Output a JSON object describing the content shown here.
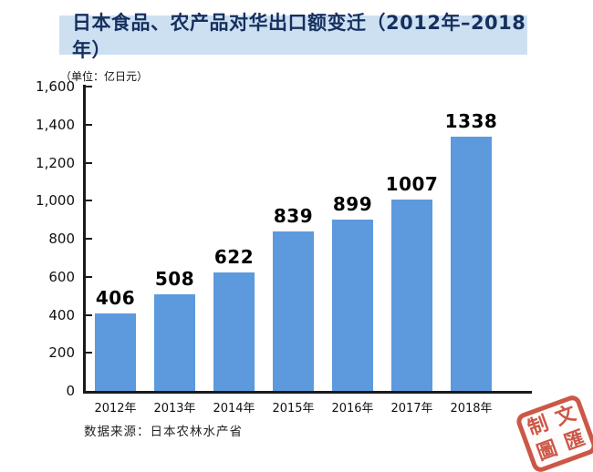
{
  "title": "日本食品、农产品对华出口额变迁（2012年–2018年）",
  "unit_label": "（单位：亿日元）",
  "source": "数据来源：日本农林水产省",
  "stamp": {
    "chars": [
      "制",
      "文",
      "圖",
      "匯"
    ],
    "color": "#c53a28"
  },
  "colors": {
    "banner_bg": "#cde0f2",
    "title_text": "#16305e",
    "bar": "#5d99dd",
    "axis": "#1a1a1a",
    "stamp_red": "#c53a28"
  },
  "chart_data": {
    "type": "bar",
    "title": "日本食品、农产品对华出口额变迁（2012年–2018年）",
    "categories": [
      "2012年",
      "2013年",
      "2014年",
      "2015年",
      "2016年",
      "2017年",
      "2018年"
    ],
    "values": [
      406,
      508,
      622,
      839,
      899,
      1007,
      1338
    ],
    "value_labels_shown": true,
    "unit": "亿日元",
    "xlabel": "",
    "ylabel": "（单位：亿日元）",
    "ylim": [
      0,
      1600
    ],
    "ytick_values": [
      0,
      200,
      400,
      600,
      800,
      1000,
      1200,
      1400,
      1600
    ],
    "ytick_labels": [
      "0",
      "200",
      "400",
      "600",
      "800",
      "1,000",
      "1,200",
      "1,400",
      "1,600"
    ],
    "grid": false,
    "legend": null,
    "bar_color": "#5d99dd",
    "source": "数据来源：日本农林水产省"
  }
}
